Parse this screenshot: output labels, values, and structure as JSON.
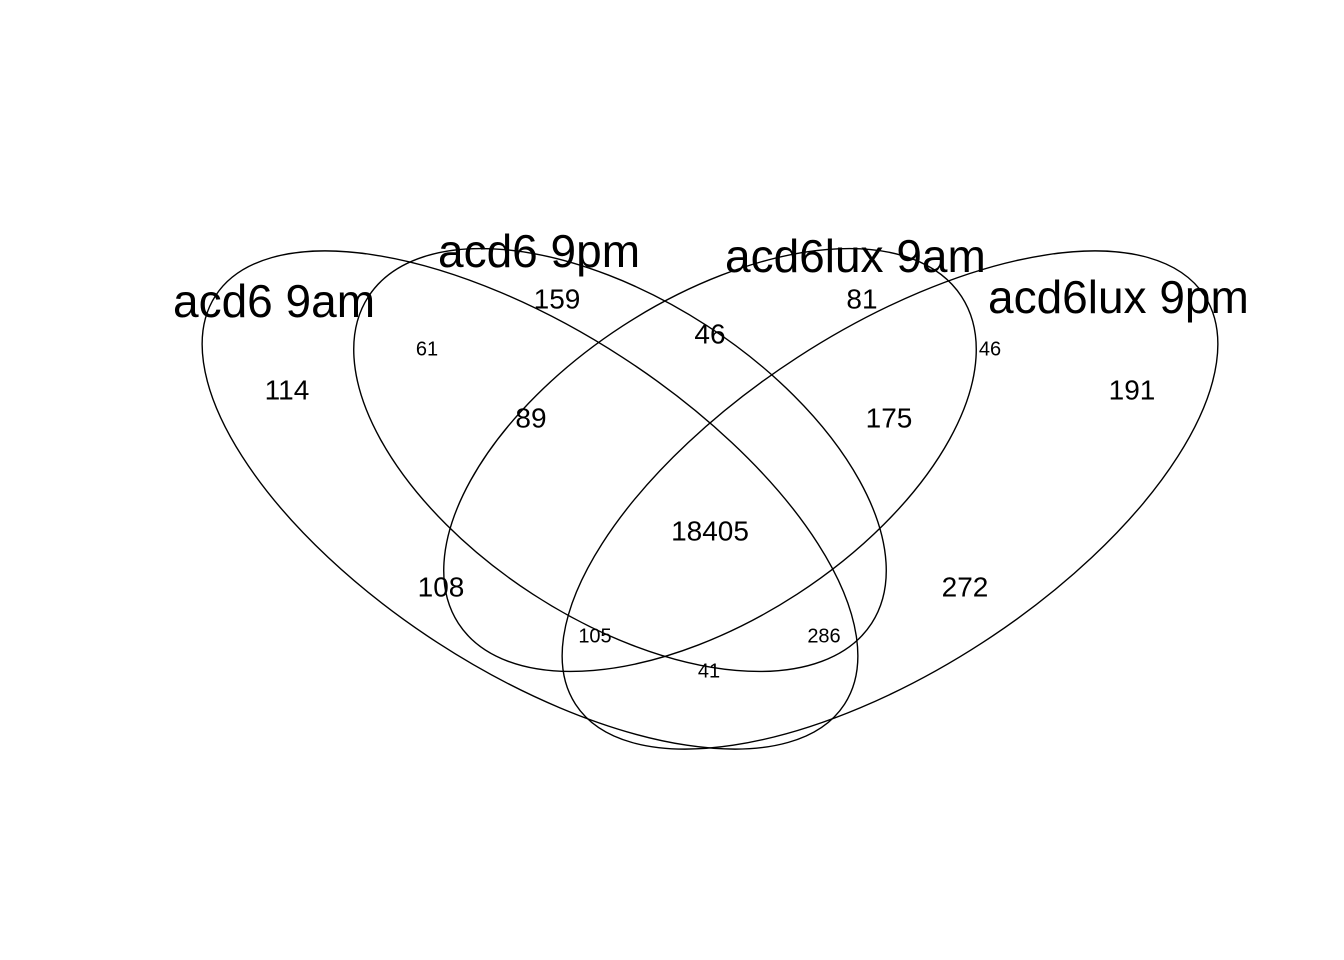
{
  "diagram": {
    "sets": [
      {
        "id": "A",
        "name": "acd6 9am"
      },
      {
        "id": "B",
        "name": "acd6 9pm"
      },
      {
        "id": "C",
        "name": "acd6lux 9am"
      },
      {
        "id": "D",
        "name": "acd6lux 9pm"
      }
    ],
    "regions": [
      {
        "sets": [
          "A"
        ],
        "count": "114"
      },
      {
        "sets": [
          "B"
        ],
        "count": "159"
      },
      {
        "sets": [
          "C"
        ],
        "count": "81"
      },
      {
        "sets": [
          "D"
        ],
        "count": "191"
      },
      {
        "sets": [
          "A",
          "B"
        ],
        "count": "61"
      },
      {
        "sets": [
          "B",
          "C"
        ],
        "count": "46"
      },
      {
        "sets": [
          "C",
          "D"
        ],
        "count": "46"
      },
      {
        "sets": [
          "A",
          "B",
          "C"
        ],
        "count": "89"
      },
      {
        "sets": [
          "B",
          "C",
          "D"
        ],
        "count": "175"
      },
      {
        "sets": [
          "A",
          "B",
          "C",
          "D"
        ],
        "count": "18405"
      },
      {
        "sets": [
          "A",
          "C"
        ],
        "count": "108"
      },
      {
        "sets": [
          "B",
          "D"
        ],
        "count": "272"
      },
      {
        "sets": [
          "A",
          "C",
          "D"
        ],
        "count": "105"
      },
      {
        "sets": [
          "A",
          "B",
          "D"
        ],
        "count": "286"
      },
      {
        "sets": [
          "A",
          "D"
        ],
        "count": "41"
      }
    ]
  }
}
